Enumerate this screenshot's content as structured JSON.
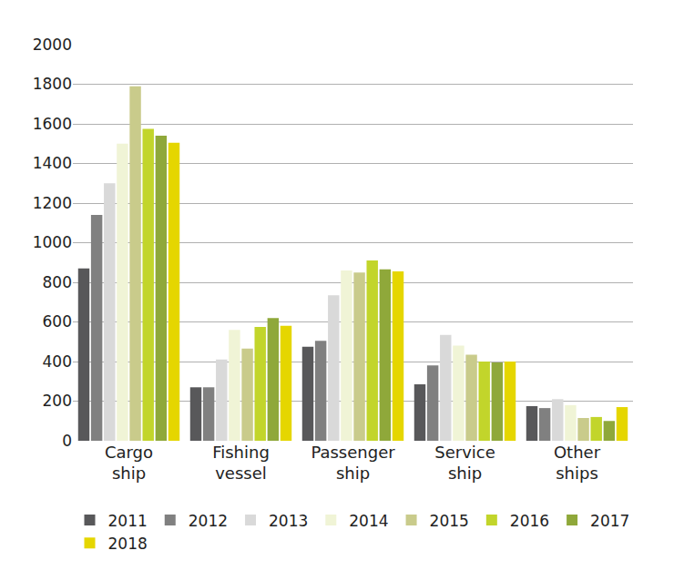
{
  "chart_data": {
    "type": "bar",
    "categories": [
      "Cargo ship",
      "Fishing vessel",
      "Passenger ship",
      "Service ship",
      "Other ships"
    ],
    "series": [
      {
        "name": "2011",
        "color": "#58585a",
        "values": [
          870,
          270,
          475,
          285,
          175
        ]
      },
      {
        "name": "2012",
        "color": "#808080",
        "values": [
          1140,
          270,
          505,
          380,
          165
        ]
      },
      {
        "name": "2013",
        "color": "#d9d9d9",
        "values": [
          1300,
          410,
          735,
          535,
          210
        ]
      },
      {
        "name": "2014",
        "color": "#f0f4d6",
        "values": [
          1500,
          560,
          860,
          480,
          180
        ]
      },
      {
        "name": "2015",
        "color": "#c9cb8b",
        "values": [
          1790,
          465,
          850,
          435,
          115
        ]
      },
      {
        "name": "2016",
        "color": "#c2d52b",
        "values": [
          1575,
          575,
          910,
          400,
          120
        ]
      },
      {
        "name": "2017",
        "color": "#8fa83a",
        "values": [
          1540,
          620,
          865,
          395,
          100
        ]
      },
      {
        "name": "2018",
        "color": "#e5d600",
        "values": [
          1505,
          580,
          855,
          400,
          170
        ]
      }
    ],
    "ylim": [
      0,
      2000
    ],
    "yticks": [
      0,
      200,
      400,
      600,
      800,
      1000,
      1200,
      1400,
      1600,
      1800,
      2000
    ],
    "grid": true,
    "legend": "bottom"
  }
}
